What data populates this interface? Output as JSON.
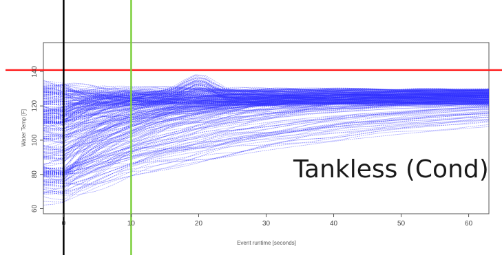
{
  "chart_data": {
    "type": "line",
    "xlabel": "Event runtime [seconds]",
    "ylabel": "Water Temp [F]",
    "xlim": [
      -3,
      63
    ],
    "ylim": [
      57,
      157
    ],
    "x_ticks": [
      0,
      10,
      20,
      30,
      40,
      50,
      60
    ],
    "y_ticks": [
      60,
      80,
      100,
      120,
      140
    ],
    "grid": false,
    "annotation": "Tankless (Cond)",
    "series_color": "#3030ff",
    "reference_lines": [
      {
        "orientation": "horizontal",
        "value": 141,
        "color": "#ff2020"
      },
      {
        "orientation": "vertical",
        "value": 0,
        "color": "#000000"
      },
      {
        "orientation": "vertical",
        "value": 10,
        "color": "#7ccf3c"
      }
    ],
    "series_count": 260
  }
}
